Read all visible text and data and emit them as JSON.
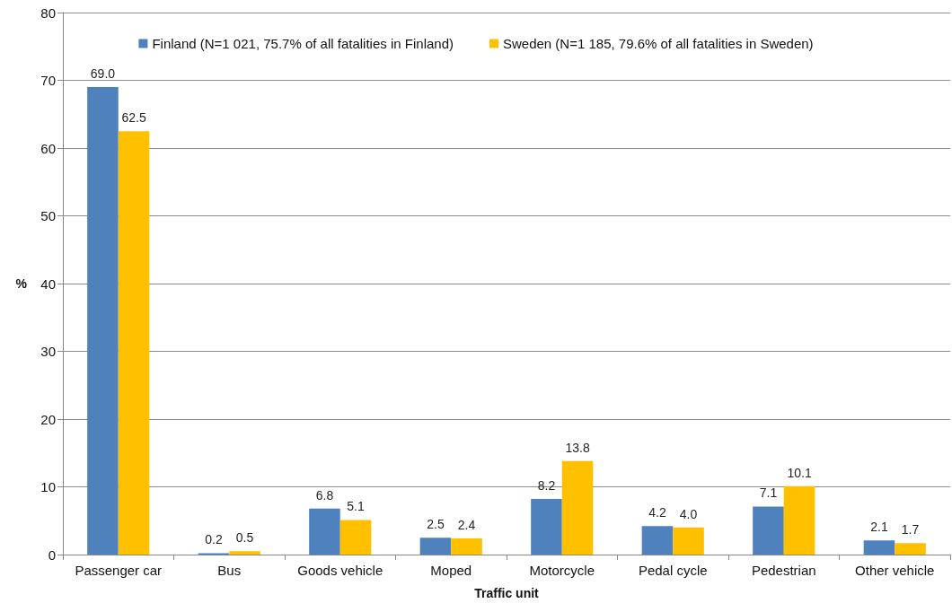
{
  "chart_data": {
    "type": "bar",
    "xlabel": "Traffic unit",
    "ylabel": "%",
    "categories": [
      "Passenger car",
      "Bus",
      "Goods vehicle",
      "Moped",
      "Motorcycle",
      "Pedal cycle",
      "Pedestrian",
      "Other vehicle"
    ],
    "series": [
      {
        "name": "Finland (N=1 021, 75.7% of all fatalities in Finland)",
        "color": "#4f81bd",
        "values": [
          69.0,
          0.2,
          6.8,
          2.5,
          8.2,
          4.2,
          7.1,
          2.1
        ],
        "value_labels": [
          "69.0",
          "0.2",
          "6.8",
          "2.5",
          "8.2",
          "4.2",
          "7.1",
          "2.1"
        ]
      },
      {
        "name": "Sweden (N=1 185, 79.6% of all fatalities in Sweden)",
        "color": "#ffc000",
        "values": [
          62.5,
          0.5,
          5.1,
          2.4,
          13.8,
          4.0,
          10.1,
          1.7
        ],
        "value_labels": [
          "62.5",
          "0.5",
          "5.1",
          "2.4",
          "13.8",
          "4.0",
          "10.1",
          "1.7"
        ]
      }
    ],
    "ylim": [
      0,
      80
    ],
    "yticks": [
      0,
      10,
      20,
      30,
      40,
      50,
      60,
      70,
      80
    ],
    "grid": "y",
    "legend": "top"
  }
}
